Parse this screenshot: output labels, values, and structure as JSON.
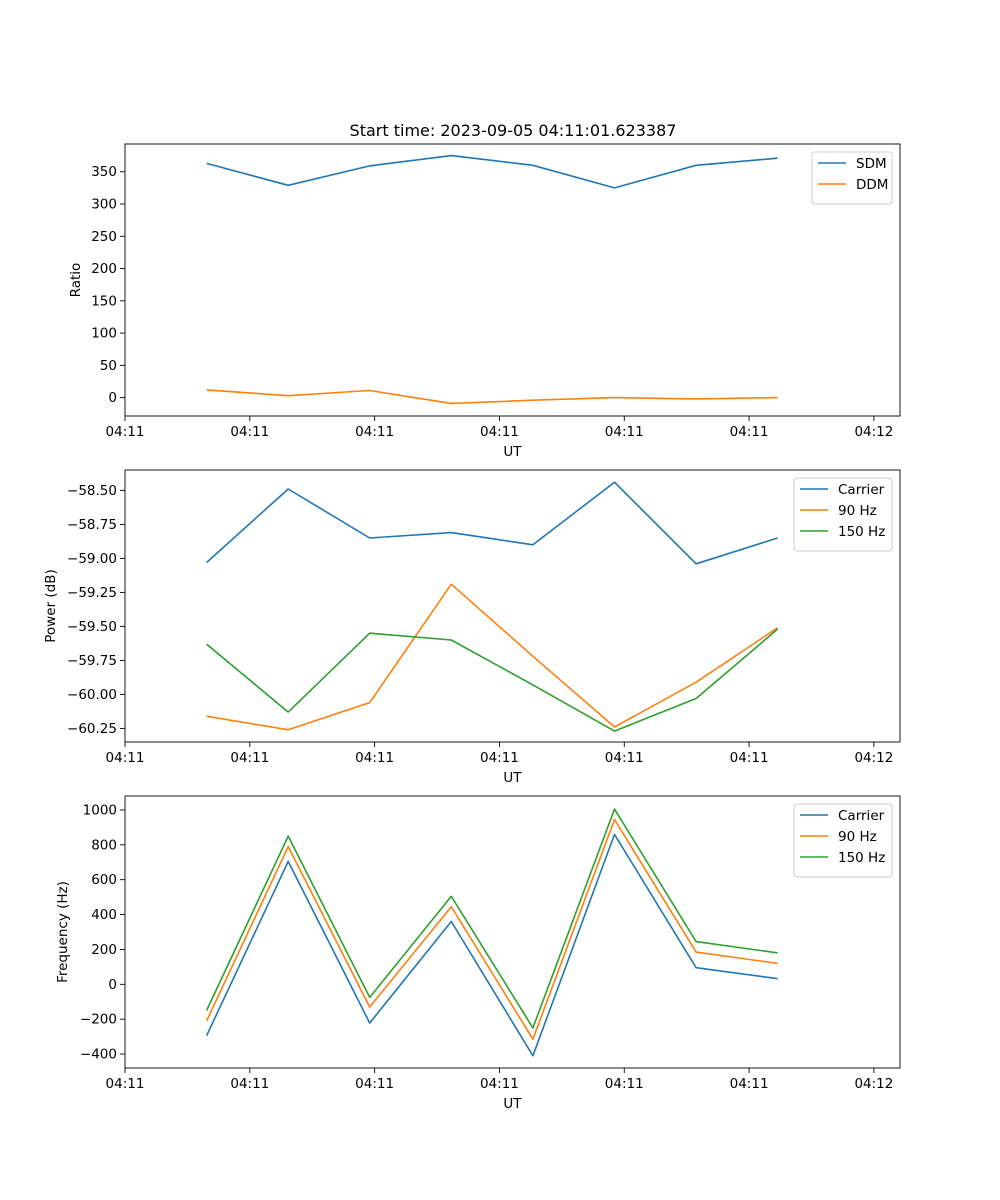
{
  "figure": {
    "title": "Start time: 2023-09-05 04:11:01.623387"
  },
  "chart_data": [
    {
      "type": "line",
      "title": "Start time: 2023-09-05 04:11:01.623387",
      "xlabel": "UT",
      "ylabel": "Ratio",
      "legend_position": "top-right",
      "x": [
        1.0,
        2.0,
        3.0,
        4.0,
        5.0,
        6.0,
        7.0,
        8.0
      ],
      "xlim": [
        0.0,
        9.5
      ],
      "x_ticks": [
        {
          "value": 0.0,
          "label": "04:11"
        },
        {
          "value": 1.53,
          "label": "04:11"
        },
        {
          "value": 3.06,
          "label": "04:11"
        },
        {
          "value": 4.59,
          "label": "04:11"
        },
        {
          "value": 6.12,
          "label": "04:11"
        },
        {
          "value": 7.65,
          "label": "04:11"
        },
        {
          "value": 9.18,
          "label": "04:12"
        }
      ],
      "ylim": [
        -28.5,
        393
      ],
      "y_ticks": [
        {
          "value": 0,
          "label": "0"
        },
        {
          "value": 50,
          "label": "50"
        },
        {
          "value": 100,
          "label": "100"
        },
        {
          "value": 150,
          "label": "150"
        },
        {
          "value": 200,
          "label": "200"
        },
        {
          "value": 250,
          "label": "250"
        },
        {
          "value": 300,
          "label": "300"
        },
        {
          "value": 350,
          "label": "350"
        }
      ],
      "series": [
        {
          "name": "SDM",
          "color": "#1f77b4",
          "values": [
            363,
            329,
            359,
            375,
            360,
            325,
            360,
            371
          ]
        },
        {
          "name": "DDM",
          "color": "#ff7f0e",
          "values": [
            12,
            3,
            11,
            -9,
            -4,
            0,
            -2,
            0
          ]
        }
      ]
    },
    {
      "type": "line",
      "xlabel": "UT",
      "ylabel": "Power (dB)",
      "legend_position": "top-right",
      "x": [
        1.0,
        2.0,
        3.0,
        4.0,
        5.0,
        6.0,
        7.0,
        8.0
      ],
      "xlim": [
        0.0,
        9.5
      ],
      "x_ticks": [
        {
          "value": 0.0,
          "label": "04:11"
        },
        {
          "value": 1.53,
          "label": "04:11"
        },
        {
          "value": 3.06,
          "label": "04:11"
        },
        {
          "value": 4.59,
          "label": "04:11"
        },
        {
          "value": 6.12,
          "label": "04:11"
        },
        {
          "value": 7.65,
          "label": "04:11"
        },
        {
          "value": 9.18,
          "label": "04:12"
        }
      ],
      "ylim": [
        -60.35,
        -58.35
      ],
      "y_ticks": [
        {
          "value": -60.25,
          "label": "−60.25"
        },
        {
          "value": -60.0,
          "label": "−60.00"
        },
        {
          "value": -59.75,
          "label": "−59.75"
        },
        {
          "value": -59.5,
          "label": "−59.50"
        },
        {
          "value": -59.25,
          "label": "−59.25"
        },
        {
          "value": -59.0,
          "label": "−59.00"
        },
        {
          "value": -58.75,
          "label": "−58.75"
        },
        {
          "value": -58.5,
          "label": "−58.50"
        }
      ],
      "series": [
        {
          "name": "Carrier",
          "color": "#1f77b4",
          "values": [
            -59.03,
            -58.49,
            -58.85,
            -58.81,
            -58.9,
            -58.44,
            -59.04,
            -58.85
          ]
        },
        {
          "name": "90 Hz",
          "color": "#ff7f0e",
          "values": [
            -60.16,
            -60.26,
            -60.06,
            -59.19,
            -59.72,
            -60.24,
            -59.91,
            -59.51
          ]
        },
        {
          "name": "150 Hz",
          "color": "#2ca02c",
          "values": [
            -59.63,
            -60.13,
            -59.55,
            -59.6,
            -59.93,
            -60.27,
            -60.03,
            -59.52
          ]
        }
      ]
    },
    {
      "type": "line",
      "xlabel": "UT",
      "ylabel": "Frequency (Hz)",
      "legend_position": "top-right",
      "x": [
        1.0,
        2.0,
        3.0,
        4.0,
        5.0,
        6.0,
        7.0,
        8.0
      ],
      "xlim": [
        0.0,
        9.5
      ],
      "x_ticks": [
        {
          "value": 0.0,
          "label": "04:11"
        },
        {
          "value": 1.53,
          "label": "04:11"
        },
        {
          "value": 3.06,
          "label": "04:11"
        },
        {
          "value": 4.59,
          "label": "04:11"
        },
        {
          "value": 6.12,
          "label": "04:11"
        },
        {
          "value": 7.65,
          "label": "04:11"
        },
        {
          "value": 9.18,
          "label": "04:12"
        }
      ],
      "ylim": [
        -480,
        1080
      ],
      "y_ticks": [
        {
          "value": -400,
          "label": "−400"
        },
        {
          "value": -200,
          "label": "−200"
        },
        {
          "value": 0,
          "label": "0"
        },
        {
          "value": 200,
          "label": "200"
        },
        {
          "value": 400,
          "label": "400"
        },
        {
          "value": 600,
          "label": "600"
        },
        {
          "value": 800,
          "label": "800"
        },
        {
          "value": 1000,
          "label": "1000"
        }
      ],
      "series": [
        {
          "name": "Carrier",
          "color": "#1f77b4",
          "values": [
            -295,
            705,
            -222,
            360,
            -410,
            860,
            95,
            32
          ]
        },
        {
          "name": "90 Hz",
          "color": "#ff7f0e",
          "values": [
            -210,
            790,
            -130,
            445,
            -315,
            945,
            185,
            120
          ]
        },
        {
          "name": "150 Hz",
          "color": "#2ca02c",
          "values": [
            -150,
            850,
            -75,
            505,
            -250,
            1005,
            245,
            180
          ]
        }
      ]
    }
  ]
}
